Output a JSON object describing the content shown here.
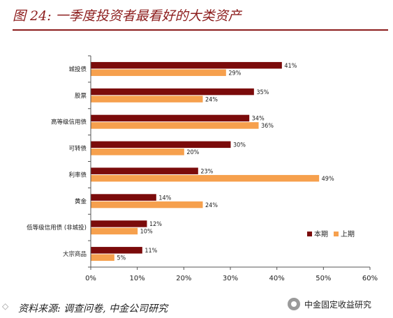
{
  "title": "图 24:  一季度投资者最看好的大类资产",
  "source": "资料来源: 调查问卷, 中金公司研究",
  "brand": "中金固定收益研究",
  "watermark_icon": "wechat-watermark-icon",
  "colors": {
    "current": "#7b0b0b",
    "previous": "#f6a04d",
    "title": "#8c1c1c"
  },
  "chart_data": {
    "type": "bar",
    "orientation": "horizontal",
    "categories": [
      "城投债",
      "股票",
      "高等级信用债",
      "可转债",
      "利率债",
      "黄金",
      "低等级信用债 (非城投)",
      "大宗商品"
    ],
    "series": [
      {
        "name": "本期",
        "values": [
          41,
          35,
          34,
          30,
          23,
          14,
          12,
          11
        ],
        "labels": [
          "41%",
          "35%",
          "34%",
          "30%",
          "23%",
          "14%",
          "12%",
          "11%"
        ]
      },
      {
        "name": "上期",
        "values": [
          29,
          24,
          36,
          20,
          49,
          24,
          10,
          5
        ],
        "labels": [
          "29%",
          "24%",
          "36%",
          "20%",
          "49%",
          "24%",
          "10%",
          "5%"
        ]
      }
    ],
    "xlim": [
      0,
      60
    ],
    "xticks": [
      "0%",
      "10%",
      "20%",
      "30%",
      "40%",
      "50%",
      "60%"
    ],
    "legend_position": "bottom-right",
    "grid": false
  }
}
